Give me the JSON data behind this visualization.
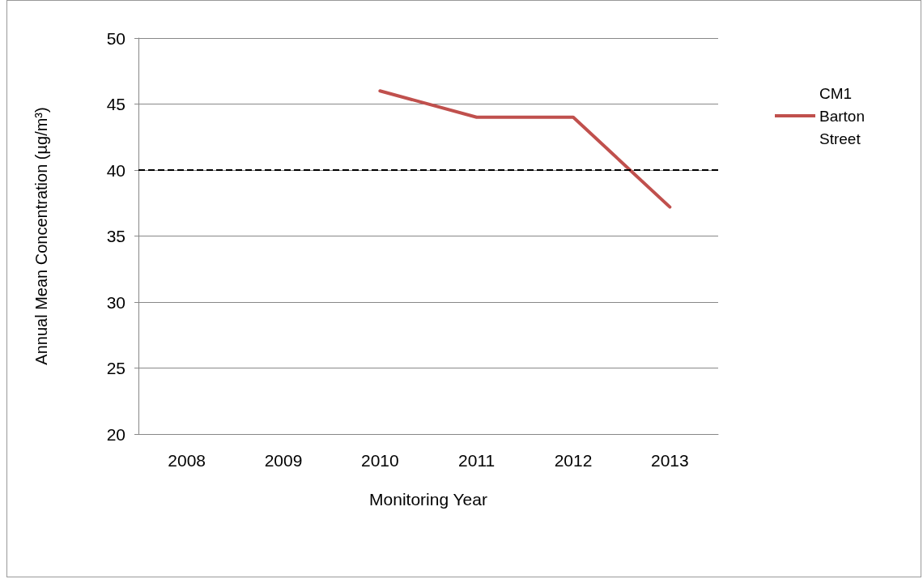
{
  "chart_data": {
    "type": "line",
    "xlabel": "Monitoring Year",
    "ylabel": "Annual Mean Concentration (µg/m³)",
    "categories": [
      "2008",
      "2009",
      "2010",
      "2011",
      "2012",
      "2013"
    ],
    "series": [
      {
        "name": "CM1 Barton Street",
        "color": "#c0504d",
        "values": [
          null,
          null,
          46,
          44,
          44,
          37.2
        ]
      }
    ],
    "ylim": [
      20,
      50
    ],
    "yticks": [
      20,
      25,
      30,
      35,
      40,
      45,
      50
    ],
    "grid": "y",
    "legend": "right",
    "marker": "none",
    "line_style": "solid",
    "ref_lines": [
      {
        "axis": "y",
        "value": 40,
        "color": "#000000",
        "line_style": "dashed"
      }
    ]
  }
}
